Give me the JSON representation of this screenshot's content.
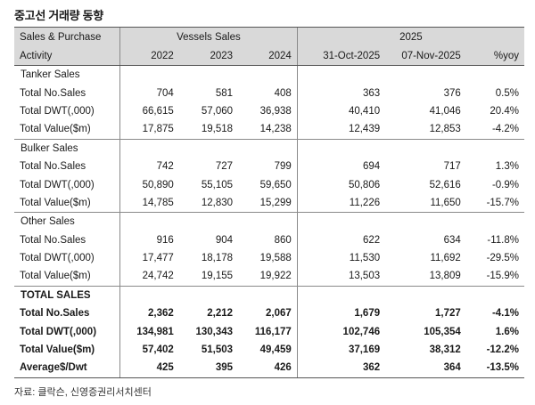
{
  "title": "중고선 거래량 동향",
  "header": {
    "row1": {
      "label": "Sales & Purchase",
      "vessels_sales": "Vessels Sales",
      "year_2025": "2025"
    },
    "row2": [
      "Activity",
      "2022",
      "2023",
      "2024",
      "31-Oct-2025",
      "07-Nov-2025",
      "%yoy"
    ]
  },
  "sections": [
    {
      "name": "Tanker Sales",
      "rows": [
        {
          "label": "Total No.Sales",
          "values": [
            "704",
            "581",
            "408",
            "363",
            "376",
            "0.5%"
          ]
        },
        {
          "label": "Total DWT(,000)",
          "values": [
            "66,615",
            "57,060",
            "36,938",
            "40,410",
            "41,046",
            "20.4%"
          ]
        },
        {
          "label": "Total Value($m)",
          "values": [
            "17,875",
            "19,518",
            "14,238",
            "12,439",
            "12,853",
            "-4.2%"
          ]
        }
      ]
    },
    {
      "name": "Bulker Sales",
      "rows": [
        {
          "label": "Total No.Sales",
          "values": [
            "742",
            "727",
            "799",
            "694",
            "717",
            "1.3%"
          ]
        },
        {
          "label": "Total DWT(,000)",
          "values": [
            "50,890",
            "55,105",
            "59,650",
            "50,806",
            "52,616",
            "-0.9%"
          ]
        },
        {
          "label": "Total Value($m)",
          "values": [
            "14,785",
            "12,830",
            "15,299",
            "11,226",
            "11,650",
            "-15.7%"
          ]
        }
      ]
    },
    {
      "name": "Other Sales",
      "rows": [
        {
          "label": "Total No.Sales",
          "values": [
            "916",
            "904",
            "860",
            "622",
            "634",
            "-11.8%"
          ]
        },
        {
          "label": "Total DWT(,000)",
          "values": [
            "17,477",
            "18,178",
            "19,588",
            "11,530",
            "11,692",
            "-29.5%"
          ]
        },
        {
          "label": "Total Value($m)",
          "values": [
            "24,742",
            "19,155",
            "19,922",
            "13,503",
            "13,809",
            "-15.9%"
          ]
        }
      ]
    },
    {
      "name": "TOTAL SALES",
      "bold": true,
      "rows": [
        {
          "label": "Total No.Sales",
          "values": [
            "2,362",
            "2,212",
            "2,067",
            "1,679",
            "1,727",
            "-4.1%"
          ]
        },
        {
          "label": "Total DWT(,000)",
          "values": [
            "134,981",
            "130,343",
            "116,177",
            "102,746",
            "105,354",
            "1.6%"
          ]
        },
        {
          "label": "Total Value($m)",
          "values": [
            "57,402",
            "51,503",
            "49,459",
            "37,169",
            "38,312",
            "-12.2%"
          ]
        },
        {
          "label": "Average$/Dwt",
          "values": [
            "425",
            "395",
            "426",
            "362",
            "364",
            "-13.5%"
          ]
        }
      ]
    }
  ],
  "source": "자료: 클락슨, 신영증권리서치센터"
}
